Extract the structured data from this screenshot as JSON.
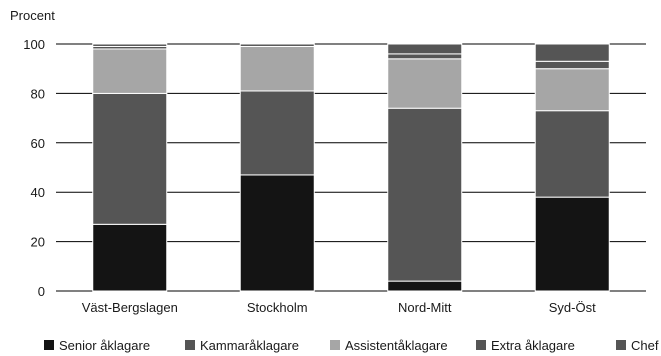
{
  "chart_data": {
    "type": "bar",
    "stacked": true,
    "ylabel": "Procent",
    "ylim": [
      0,
      100
    ],
    "yticks": [
      0,
      20,
      40,
      60,
      80,
      100
    ],
    "grid": true,
    "legend_position": "bottom",
    "categories": [
      "Väst-Bergslagen",
      "Stockholm",
      "Nord-Mitt",
      "Syd-Öst"
    ],
    "series": [
      {
        "name": "Senior åklagare",
        "color": "#141414",
        "values": [
          27,
          47,
          4,
          38
        ]
      },
      {
        "name": "Kammaråklagare",
        "color": "#555555",
        "values": [
          53,
          34,
          70,
          35
        ]
      },
      {
        "name": "Assistentåklagare",
        "color": "#a6a6a6",
        "values": [
          18,
          18,
          20,
          17
        ]
      },
      {
        "name": "Extra åklagare",
        "color": "#555555",
        "values": [
          1,
          0,
          2,
          3
        ]
      },
      {
        "name": "Chef",
        "color": "#555555",
        "values": [
          1,
          1,
          4,
          7
        ]
      }
    ]
  }
}
